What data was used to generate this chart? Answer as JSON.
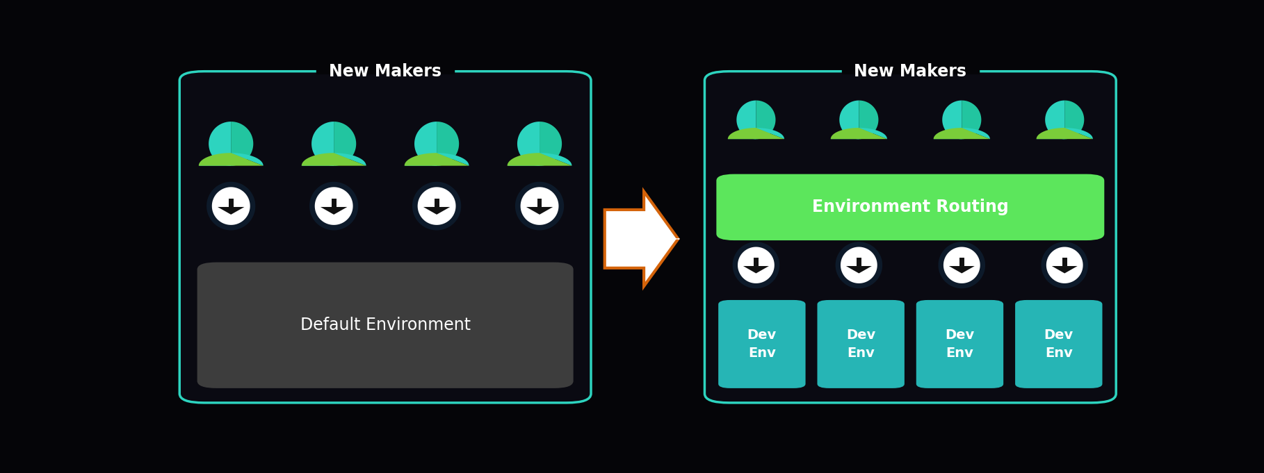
{
  "bg_color": "#050508",
  "border_color": "#2dd4bf",
  "title_color": "#ffffff",
  "title_text": "New Makers",
  "left_box_bg": "#0d0d14",
  "default_env_bg": "#3d3d3d",
  "default_env_text": "Default Environment",
  "default_env_text_color": "#ffffff",
  "right_box_bg": "#0d0d14",
  "env_routing_bg": "#5ce65c",
  "env_routing_text": "Environment Routing",
  "env_routing_text_color": "#ffffff",
  "dev_env_bg": "#26b5b5",
  "dev_env_text_color": "#ffffff",
  "dev_env_label": [
    "Dev\nEnv",
    "Dev\nEnv",
    "Dev\nEnv",
    "Dev\nEnv"
  ],
  "arrow_fill": "#ffffff",
  "arrow_outline": "#d4630a",
  "person_color_top": "#2dd4bf",
  "person_color_bottom": "#a8d400",
  "circle_dark": "#0d1a2a",
  "circle_white": "#ffffff",
  "circle_arrow_color": "#111111",
  "num_makers": 4
}
